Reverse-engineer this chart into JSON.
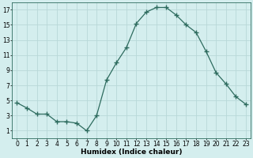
{
  "x": [
    0,
    1,
    2,
    3,
    4,
    5,
    6,
    7,
    8,
    9,
    10,
    11,
    12,
    13,
    14,
    15,
    16,
    17,
    18,
    19,
    20,
    21,
    22,
    23
  ],
  "y": [
    4.7,
    4.0,
    3.2,
    3.2,
    2.2,
    2.2,
    2.0,
    1.0,
    3.0,
    7.7,
    10.0,
    12.0,
    15.2,
    16.7,
    17.3,
    17.3,
    16.3,
    15.0,
    14.0,
    11.5,
    8.7,
    7.2,
    5.5,
    4.5
  ],
  "line_color": "#2d6b5e",
  "marker": "+",
  "marker_size": 5,
  "bg_color": "#d4eeee",
  "grid_color": "#b8d8d8",
  "xlabel": "Humidex (Indice chaleur)",
  "xlim": [
    -0.5,
    23.5
  ],
  "ylim": [
    0,
    18
  ],
  "yticks": [
    1,
    3,
    5,
    7,
    9,
    11,
    13,
    15,
    17
  ],
  "xticks": [
    0,
    1,
    2,
    3,
    4,
    5,
    6,
    7,
    8,
    9,
    10,
    11,
    12,
    13,
    14,
    15,
    16,
    17,
    18,
    19,
    20,
    21,
    22,
    23
  ],
  "label_fontsize": 6.5,
  "tick_fontsize": 5.5
}
